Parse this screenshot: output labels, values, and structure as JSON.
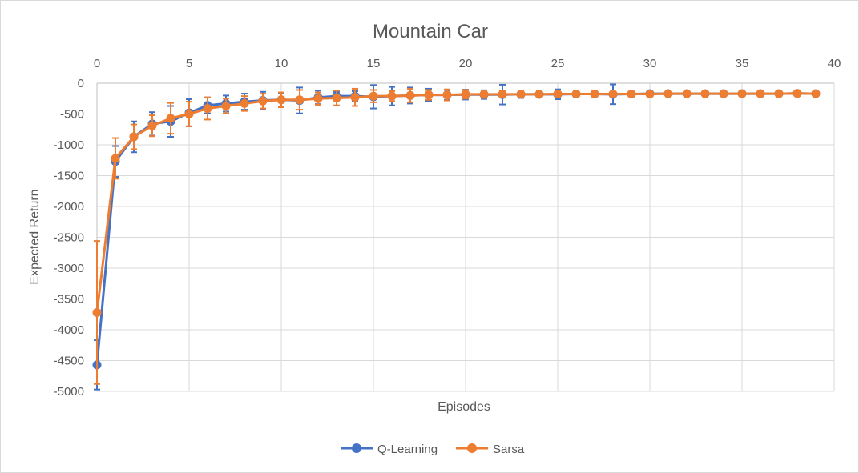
{
  "chart_data": {
    "type": "line",
    "title": "Mountain Car",
    "xlabel": "Episodes",
    "ylabel": "Expected Return",
    "xlim": [
      0,
      40
    ],
    "ylim": [
      -5000,
      0
    ],
    "x_ticks": [
      0,
      5,
      10,
      15,
      20,
      25,
      30,
      35,
      40
    ],
    "y_ticks": [
      0,
      -500,
      -1000,
      -1500,
      -2000,
      -2500,
      -3000,
      -3500,
      -4000,
      -4500,
      -5000
    ],
    "x_axis_position": "top",
    "y_axis_inverted": true,
    "grid": true,
    "legend_position": "bottom",
    "x": [
      0,
      1,
      2,
      3,
      4,
      5,
      6,
      7,
      8,
      9,
      10,
      11,
      12,
      13,
      14,
      15,
      16,
      17,
      18,
      19,
      20,
      21,
      22,
      23,
      24,
      25,
      26,
      27,
      28,
      29,
      30,
      31,
      32,
      33,
      34,
      35,
      36,
      37,
      38,
      39
    ],
    "series": [
      {
        "name": "Q-Learning",
        "color": "#4472C4",
        "values": [
          -4570,
          -1270,
          -870,
          -660,
          -620,
          -480,
          -360,
          -330,
          -300,
          -280,
          -270,
          -280,
          -230,
          -210,
          -210,
          -220,
          -210,
          -200,
          -190,
          -190,
          -185,
          -185,
          -185,
          -180,
          -180,
          -180,
          -175,
          -175,
          -180,
          -175,
          -170,
          -170,
          -170,
          -170,
          -170,
          -170,
          -170,
          -170,
          -165,
          -170
        ],
        "errors": [
          400,
          250,
          250,
          190,
          250,
          220,
          130,
          130,
          130,
          140,
          110,
          210,
          110,
          70,
          80,
          190,
          150,
          130,
          100,
          80,
          80,
          70,
          160,
          60,
          50,
          80,
          50,
          40,
          160,
          30,
          30,
          30,
          30,
          30,
          30,
          30,
          30,
          30,
          30,
          30
        ]
      },
      {
        "name": "Sarsa",
        "color": "#ED7D31",
        "values": [
          -3720,
          -1220,
          -870,
          -690,
          -570,
          -500,
          -410,
          -370,
          -330,
          -290,
          -270,
          -270,
          -250,
          -240,
          -230,
          -210,
          -210,
          -200,
          -190,
          -190,
          -180,
          -180,
          -180,
          -180,
          -180,
          -175,
          -175,
          -175,
          -175,
          -175,
          -175,
          -170,
          -170,
          -170,
          -170,
          -170,
          -170,
          -170,
          -165,
          -170
        ],
        "errors": [
          1160,
          330,
          200,
          170,
          250,
          200,
          180,
          120,
          120,
          120,
          120,
          160,
          100,
          120,
          140,
          100,
          80,
          110,
          80,
          90,
          70,
          60,
          50,
          50,
          50,
          40,
          40,
          40,
          40,
          30,
          30,
          30,
          30,
          30,
          30,
          30,
          30,
          30,
          30,
          30
        ]
      }
    ]
  }
}
